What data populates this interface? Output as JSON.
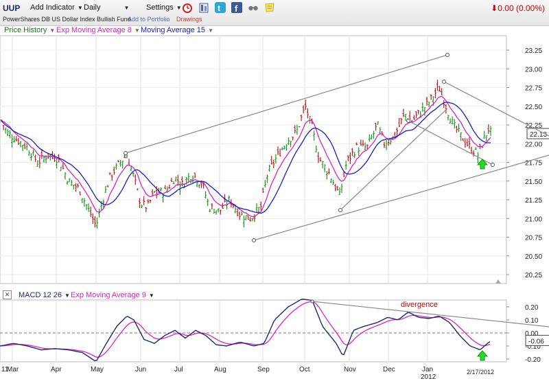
{
  "toolbar": {
    "ticker": "UUP",
    "add_indicator": "Add Indicator",
    "period": "Daily",
    "settings": "Settings",
    "fund_name": "PowerShares DB US Dollar Index Bullish Fund",
    "add_to_portfolio": "Add to Portfolio",
    "drawings": "Drawings",
    "change": "0.00 (0.00%)",
    "change_icon": "down-arrow-icon",
    "icons": [
      "alarm-clock-icon",
      "portfolio-icon",
      "twitter-icon",
      "facebook-icon",
      "glasses-icon",
      "note-icon"
    ]
  },
  "price_legend": [
    {
      "label": "Price History",
      "color": "#1a7a1a"
    },
    {
      "label": "Exp Moving Average 8",
      "color": "#e020c0"
    },
    {
      "label": "Moving Average 15",
      "color": "#1a1acc"
    }
  ],
  "macd_legend": [
    {
      "label": "MACD 12 26",
      "color": "#1a2a6c"
    },
    {
      "label": "Exp Moving Average 9",
      "color": "#e020c0"
    }
  ],
  "price_axis": [
    "23.25",
    "23.00",
    "22.75",
    "22.50",
    "22.25",
    "22.00",
    "21.75",
    "21.50",
    "21.25",
    "21.00",
    "20.75",
    "20.50",
    "20.25"
  ],
  "last_price": "22.13",
  "macd_axis": [
    "0.20",
    "0.10",
    "0.00",
    "-0.10",
    "-0.20"
  ],
  "macd_last": "-0.06",
  "x_labels": [
    "11",
    "Mar",
    "Apr",
    "May",
    "Jun",
    "Jul",
    "Aug",
    "Sep",
    "Oct",
    "Nov",
    "Dec",
    "Jan",
    "2012"
  ],
  "date_label": "2/17/2012",
  "annotation": "divergence",
  "chart_data": [
    {
      "type": "line",
      "title": "UUP",
      "series": [
        {
          "name": "Price History"
        },
        {
          "name": "Exp Moving Average 8"
        },
        {
          "name": "Moving Average 15"
        }
      ],
      "x": [
        "Feb 2011",
        "Mar",
        "Apr",
        "May",
        "Jun",
        "Jul",
        "Aug",
        "Sep",
        "Oct",
        "Nov",
        "Dec",
        "Jan 2012",
        "Feb 2012"
      ],
      "ylim": [
        20.2,
        23.4
      ],
      "close_approx": [
        22.3,
        22.0,
        21.8,
        21.0,
        21.7,
        21.5,
        21.5,
        21.0,
        22.4,
        21.5,
        22.3,
        22.5,
        22.13
      ],
      "last": 22.13
    },
    {
      "type": "line",
      "series": [
        {
          "name": "MACD 12 26"
        },
        {
          "name": "Exp Moving Average 9"
        }
      ],
      "ylim": [
        -0.25,
        0.28
      ],
      "last": -0.06
    }
  ]
}
